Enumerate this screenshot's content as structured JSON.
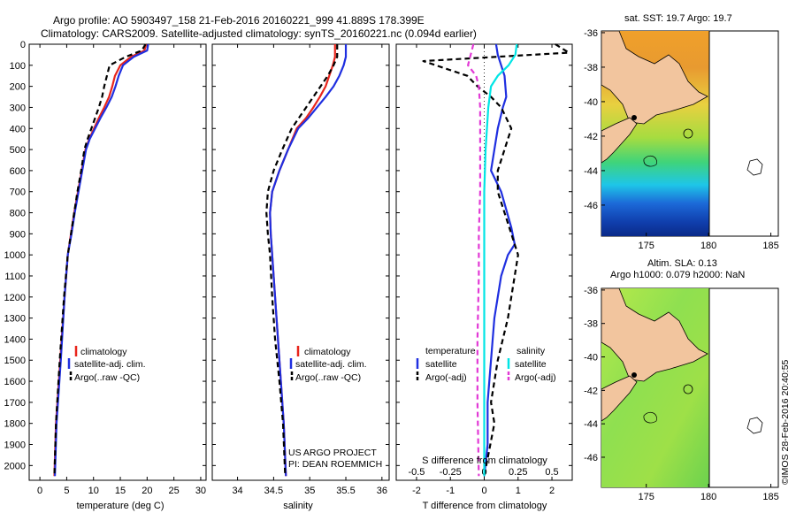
{
  "header": {
    "line1": "Argo profile: AO 5903497_158 21-Feb-2016 20160221_999 41.889S 178.399E",
    "line2": "Climatology: CARS2009. Satellite-adjusted climatology: synTS_20160221.nc (0.094d earlier)"
  },
  "colors": {
    "climatology": "#e8251c",
    "satellite": "#1f2fe0",
    "argo": "#000000",
    "sal_satellite": "#00e5e5",
    "sal_argo": "#e23ad6",
    "land": "#f2c59e"
  },
  "chart_data": [
    {
      "type": "line",
      "id": "temperature",
      "xlabel": "temperature (deg C)",
      "ylabel": "",
      "xlim": [
        -2,
        31
      ],
      "ylim": [
        2070,
        0
      ],
      "xticks": [
        0,
        5,
        10,
        15,
        20,
        25,
        30
      ],
      "yticks": [
        0,
        100,
        200,
        300,
        400,
        500,
        600,
        700,
        800,
        900,
        1000,
        1100,
        1200,
        1300,
        1400,
        1500,
        1600,
        1700,
        1800,
        1900,
        2000
      ],
      "legend": [
        "climatology",
        "satellite-adj. clim.",
        "Argo(..raw -QC)"
      ],
      "series": [
        {
          "name": "climatology",
          "color": "#e8251c",
          "dash": "",
          "x": [
            19.8,
            19.5,
            17.0,
            15.0,
            14.0,
            13.5,
            12.9,
            12.0,
            11.0,
            10.1,
            9.2,
            8.5,
            7.8,
            7.1,
            6.4,
            5.8,
            5.2,
            4.6,
            3.8,
            3.0,
            2.7
          ],
          "y": [
            0,
            30,
            60,
            100,
            150,
            200,
            250,
            300,
            350,
            400,
            450,
            500,
            600,
            700,
            800,
            900,
            1000,
            1200,
            1500,
            1800,
            2050
          ]
        },
        {
          "name": "satellite-adj. clim.",
          "color": "#1f2fe0",
          "dash": "",
          "x": [
            20.2,
            20.0,
            17.5,
            15.5,
            14.7,
            14.1,
            13.4,
            12.4,
            11.3,
            10.3,
            9.3,
            8.6,
            7.9,
            7.2,
            6.5,
            5.9,
            5.2,
            4.6,
            3.9,
            3.1,
            2.8
          ],
          "y": [
            0,
            30,
            60,
            100,
            150,
            200,
            250,
            300,
            350,
            400,
            450,
            500,
            600,
            700,
            800,
            900,
            1000,
            1200,
            1500,
            1800,
            2050
          ]
        },
        {
          "name": "Argo(..raw -QC)",
          "color": "#000000",
          "dash": "6,4",
          "x": [
            19.7,
            19.0,
            16.0,
            13.0,
            12.5,
            12.0,
            11.6,
            11.0,
            10.3,
            9.6,
            8.9,
            8.3,
            7.7,
            7.0,
            6.4,
            5.8,
            5.2,
            4.5,
            3.7,
            3.0,
            2.7
          ],
          "y": [
            0,
            30,
            60,
            100,
            150,
            200,
            250,
            300,
            350,
            400,
            450,
            500,
            600,
            700,
            800,
            900,
            1000,
            1200,
            1500,
            1800,
            2050
          ]
        }
      ]
    },
    {
      "type": "line",
      "id": "salinity",
      "xlabel": "salinity",
      "ylabel": "",
      "xlim": [
        33.65,
        36.1
      ],
      "ylim": [
        2070,
        0
      ],
      "xticks": [
        34,
        34.5,
        35,
        35.5,
        36
      ],
      "legend": [
        "climatology",
        "satellite-adj. clim.",
        "Argo(..raw -QC)"
      ],
      "series": [
        {
          "name": "climatology",
          "color": "#e8251c",
          "dash": "",
          "x": [
            35.35,
            35.35,
            35.32,
            35.27,
            35.22,
            35.14,
            35.05,
            34.95,
            34.82,
            34.7,
            34.58,
            34.48,
            34.45,
            34.46,
            34.48,
            34.52,
            34.56,
            34.6,
            34.64,
            34.67
          ],
          "y": [
            0,
            60,
            100,
            150,
            200,
            250,
            300,
            350,
            400,
            500,
            600,
            700,
            800,
            900,
            1000,
            1200,
            1400,
            1600,
            1800,
            2050
          ]
        },
        {
          "name": "satellite-adj. clim.",
          "color": "#1f2fe0",
          "dash": "",
          "x": [
            35.5,
            35.5,
            35.47,
            35.41,
            35.33,
            35.22,
            35.1,
            34.98,
            34.84,
            34.7,
            34.58,
            34.48,
            34.45,
            34.46,
            34.48,
            34.52,
            34.56,
            34.6,
            34.64,
            34.67
          ],
          "y": [
            0,
            60,
            100,
            150,
            200,
            250,
            300,
            350,
            400,
            500,
            600,
            700,
            800,
            900,
            1000,
            1200,
            1400,
            1600,
            1800,
            2050
          ]
        },
        {
          "name": "Argo(..raw -QC)",
          "color": "#000000",
          "dash": "6,4",
          "x": [
            35.38,
            35.38,
            35.33,
            35.25,
            35.15,
            35.05,
            34.95,
            34.85,
            34.75,
            34.62,
            34.5,
            34.42,
            34.4,
            34.42,
            34.45,
            34.48,
            34.52,
            34.58,
            34.63,
            34.66
          ],
          "y": [
            0,
            60,
            100,
            150,
            200,
            250,
            300,
            350,
            400,
            500,
            600,
            700,
            800,
            900,
            1000,
            1200,
            1400,
            1600,
            1800,
            2050
          ]
        }
      ]
    },
    {
      "type": "line",
      "id": "differences",
      "xlabel": "T difference from climatology",
      "x2label": "S difference from climatology",
      "xlim": [
        -2.6,
        2.6
      ],
      "ylim": [
        2070,
        0
      ],
      "xticks": [
        -2,
        -1,
        0,
        1,
        2
      ],
      "x2ticks": [
        -0.5,
        -0.25,
        0,
        0.25,
        0.5
      ],
      "legend_headers": [
        "temperature",
        "salinity"
      ],
      "legend": [
        "satellite",
        "Argo(-adj)",
        "satellite",
        "Argo(-adj)"
      ],
      "series": [
        {
          "name": "satellite",
          "group": "temperature",
          "color": "#1f2fe0",
          "dash": "",
          "x": [
            0.35,
            0.4,
            0.5,
            0.6,
            0.65,
            0.55,
            0.4,
            0.3,
            0.2,
            0.5,
            0.8,
            0.9,
            0.7,
            0.5,
            0.3,
            0.2,
            0.1,
            0.1,
            0.0
          ],
          "y": [
            0,
            50,
            100,
            150,
            250,
            300,
            400,
            500,
            600,
            700,
            870,
            950,
            1000,
            1100,
            1300,
            1500,
            1700,
            1900,
            2050
          ]
        },
        {
          "name": "Argo(-adj)",
          "group": "temperature",
          "color": "#000000",
          "dash": "6,4",
          "x": [
            2.1,
            2.5,
            -1.8,
            -0.5,
            -0.2,
            0.2,
            0.5,
            0.8,
            0.6,
            0.4,
            0.4,
            0.8,
            1.0,
            0.9,
            0.7,
            0.4,
            0.2,
            0.3,
            0.0
          ],
          "y": [
            0,
            40,
            80,
            150,
            200,
            250,
            300,
            400,
            500,
            600,
            700,
            900,
            1000,
            1100,
            1300,
            1500,
            1700,
            1800,
            2050
          ]
        },
        {
          "name": "satellite",
          "group": "salinity",
          "color": "#00e5e5",
          "dash": "",
          "x": [
            0.24,
            0.23,
            0.18,
            0.1,
            0.05,
            0.03,
            0.02,
            0.01,
            0.0,
            0.0,
            0.0,
            0.0,
            0.0,
            0.0
          ],
          "y": [
            0,
            50,
            100,
            150,
            200,
            300,
            400,
            500,
            700,
            900,
            1100,
            1400,
            1700,
            2050
          ]
        },
        {
          "name": "Argo(-adj)",
          "group": "salinity",
          "color": "#e23ad6",
          "dash": "6,4",
          "x": [
            -0.08,
            -0.1,
            -0.12,
            -0.06,
            -0.04,
            -0.03,
            -0.03,
            -0.03,
            -0.03,
            -0.04,
            -0.04,
            -0.05,
            -0.05,
            -0.04
          ],
          "y": [
            0,
            50,
            100,
            150,
            200,
            300,
            400,
            500,
            700,
            900,
            1100,
            1400,
            1700,
            2050
          ]
        }
      ]
    }
  ],
  "annotations": {
    "project": "US ARGO PROJECT",
    "pi": "PI: DEAN ROEMMICH"
  },
  "map_sst": {
    "title": "sat. SST: 19.7 Argo: 19.7",
    "xticks": [
      175,
      180,
      185
    ],
    "yticks": [
      -36,
      -38,
      -40,
      -42,
      -44,
      -46
    ],
    "xlim": [
      171.4,
      185.6
    ],
    "ylim": [
      -47.8,
      -35.9
    ]
  },
  "map_sla": {
    "title_line1": "Altim. SLA: 0.13",
    "title_line2": "Argo h1000: 0.079 h2000: NaN",
    "xticks": [
      175,
      180,
      185
    ],
    "yticks": [
      -36,
      -38,
      -40,
      -42,
      -44,
      -46
    ],
    "xlim": [
      171.4,
      185.6
    ],
    "ylim": [
      -47.8,
      -35.9
    ]
  },
  "credit": "©IMOS 28-Feb-2016 20:40:55"
}
